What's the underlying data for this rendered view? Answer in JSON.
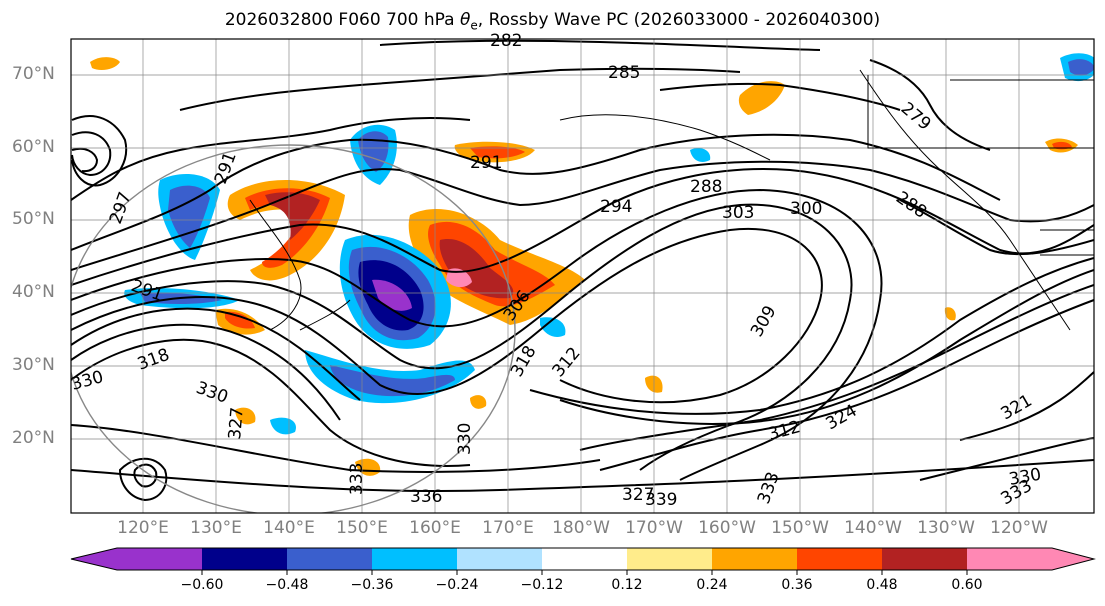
{
  "title": {
    "prefix": "2026032800 F060 700 hPa ",
    "theta": "θ",
    "theta_sub": "e",
    "suffix": ", Rossby Wave PC (2026033000 - 2026040300)"
  },
  "lat_labels": [
    "70°N",
    "60°N",
    "50°N",
    "40°N",
    "30°N",
    "20°N"
  ],
  "lon_labels": [
    "120°E",
    "130°E",
    "140°E",
    "150°E",
    "160°E",
    "170°E",
    "180°W",
    "170°W",
    "160°W",
    "150°W",
    "140°W",
    "130°W",
    "120°W"
  ],
  "contour_labels": [
    "282",
    "285",
    "279",
    "291",
    "288",
    "297",
    "291",
    "294",
    "303",
    "300",
    "288",
    "291",
    "306",
    "309",
    "312",
    "318",
    "330",
    "327",
    "324",
    "321",
    "318",
    "312",
    "330",
    "333",
    "336",
    "327",
    "339",
    "333",
    "330",
    "333",
    "330"
  ],
  "colorbar": {
    "tick_labels": [
      "−0.60",
      "−0.48",
      "−0.36",
      "−0.24",
      "−0.12",
      "0.12",
      "0.24",
      "0.36",
      "0.48",
      "0.60"
    ],
    "colors": [
      "#9932cc",
      "#00008b",
      "#3a5fcd",
      "#00bfff",
      "#b0e2ff",
      "#ffffff",
      "#ffec8b",
      "#ffa500",
      "#ff4500",
      "#b22222",
      "#ff88b4"
    ]
  }
}
